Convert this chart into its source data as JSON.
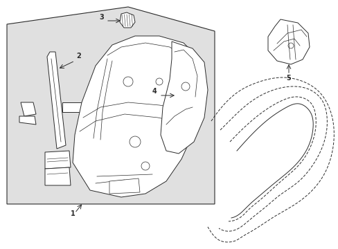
{
  "bg": "#ffffff",
  "lc": "#2a2a2a",
  "gray_fill": "#e0e0e0",
  "fig_w": 4.89,
  "fig_h": 3.6,
  "dpi": 100
}
